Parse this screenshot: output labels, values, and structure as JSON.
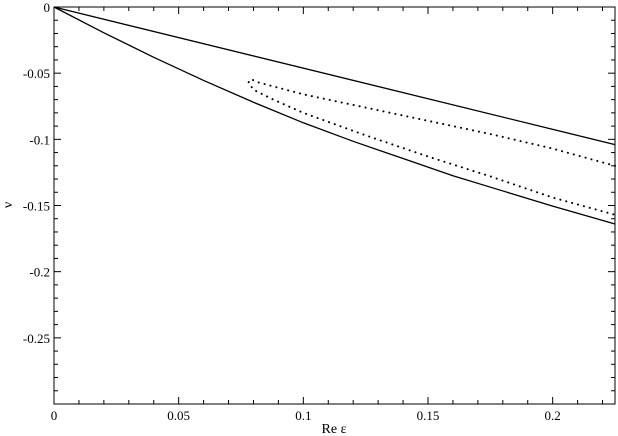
{
  "chart_data": {
    "type": "line",
    "title": "",
    "xlabel": "Re ε",
    "ylabel": "ν",
    "xlim": [
      0,
      0.225
    ],
    "ylim": [
      -0.3,
      0
    ],
    "grid": false,
    "x_major_ticks": [
      0,
      0.05,
      0.1,
      0.15,
      0.2
    ],
    "x_tick_labels": [
      "0",
      "0.05",
      "0.1",
      "0.15",
      "0.2"
    ],
    "y_major_ticks": [
      0,
      -0.05,
      -0.1,
      -0.15,
      -0.2,
      -0.25
    ],
    "y_tick_labels": [
      "0",
      "-0.05",
      "-0.1",
      "-0.15",
      "-0.2",
      "-0.25"
    ],
    "series": [
      {
        "style": "solid",
        "color": "#000000",
        "x": [
          0,
          0.225
        ],
        "y": [
          0,
          -0.104
        ]
      },
      {
        "style": "solid",
        "color": "#000000",
        "x": [
          0,
          0.02,
          0.04,
          0.06,
          0.08,
          0.1,
          0.12,
          0.14,
          0.16,
          0.18,
          0.2,
          0.225
        ],
        "y": [
          0,
          -0.0195,
          -0.038,
          -0.0555,
          -0.072,
          -0.0875,
          -0.1015,
          -0.1145,
          -0.1275,
          -0.139,
          -0.1505,
          -0.164
        ]
      },
      {
        "style": "dotted",
        "color": "#000000",
        "x": [
          0.225,
          0.2,
          0.175,
          0.15,
          0.125,
          0.1,
          0.09,
          0.082,
          0.079,
          0.078,
          0.08,
          0.088,
          0.1,
          0.125,
          0.15,
          0.175,
          0.2,
          0.225
        ],
        "y": [
          -0.12,
          -0.107,
          -0.096,
          -0.086,
          -0.076,
          -0.066,
          -0.061,
          -0.057,
          -0.0545,
          -0.057,
          -0.0625,
          -0.07,
          -0.08,
          -0.097,
          -0.113,
          -0.128,
          -0.144,
          -0.157
        ]
      }
    ]
  }
}
